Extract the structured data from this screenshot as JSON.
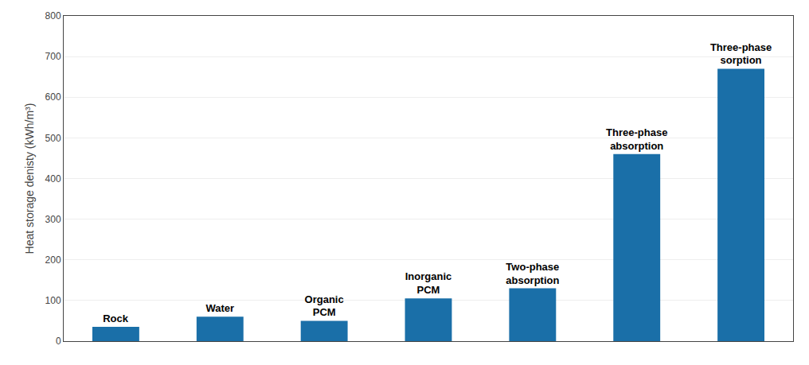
{
  "chart_data": {
    "type": "bar",
    "categories": [
      "Rock",
      "Water",
      "Organic\nPCM",
      "Inorganic\nPCM",
      "Two-phase\nabsorption",
      "Three-phase\nabsorption",
      "Three-phase\nsorption"
    ],
    "values": [
      35,
      60,
      50,
      105,
      130,
      460,
      670
    ],
    "color": "#1a6fa8",
    "ylabel": "Heat storage denisty (kWh/m³)",
    "ylim": [
      0,
      800
    ],
    "yticks": [
      0,
      100,
      200,
      300,
      400,
      500,
      600,
      700,
      800
    ],
    "grid": true,
    "tick_labels": "y"
  }
}
